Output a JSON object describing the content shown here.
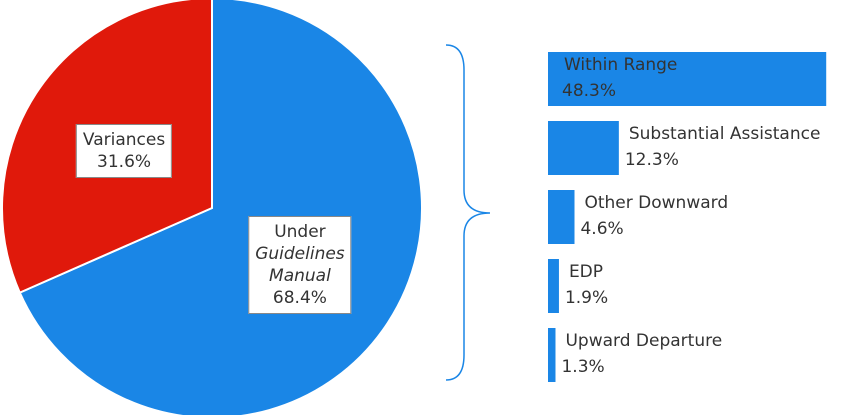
{
  "chart_data": [
    {
      "type": "pie",
      "categories": [
        "Under Guidelines Manual",
        "Variances"
      ],
      "values": [
        68.4,
        31.6
      ],
      "value_labels": [
        "68.4%",
        "31.6%"
      ],
      "colors": [
        "#1a86e6",
        "#e0190b"
      ]
    },
    {
      "type": "bar",
      "categories": [
        "Within Range",
        "Substantial Assistance",
        "Other Downward",
        "EDP",
        "Upward Departure"
      ],
      "values": [
        48.3,
        12.3,
        4.6,
        1.9,
        1.3
      ],
      "value_labels": [
        "48.3%",
        "12.3%",
        "4.6%",
        "1.9%",
        "1.3%"
      ],
      "color": "#1a86e6"
    }
  ]
}
